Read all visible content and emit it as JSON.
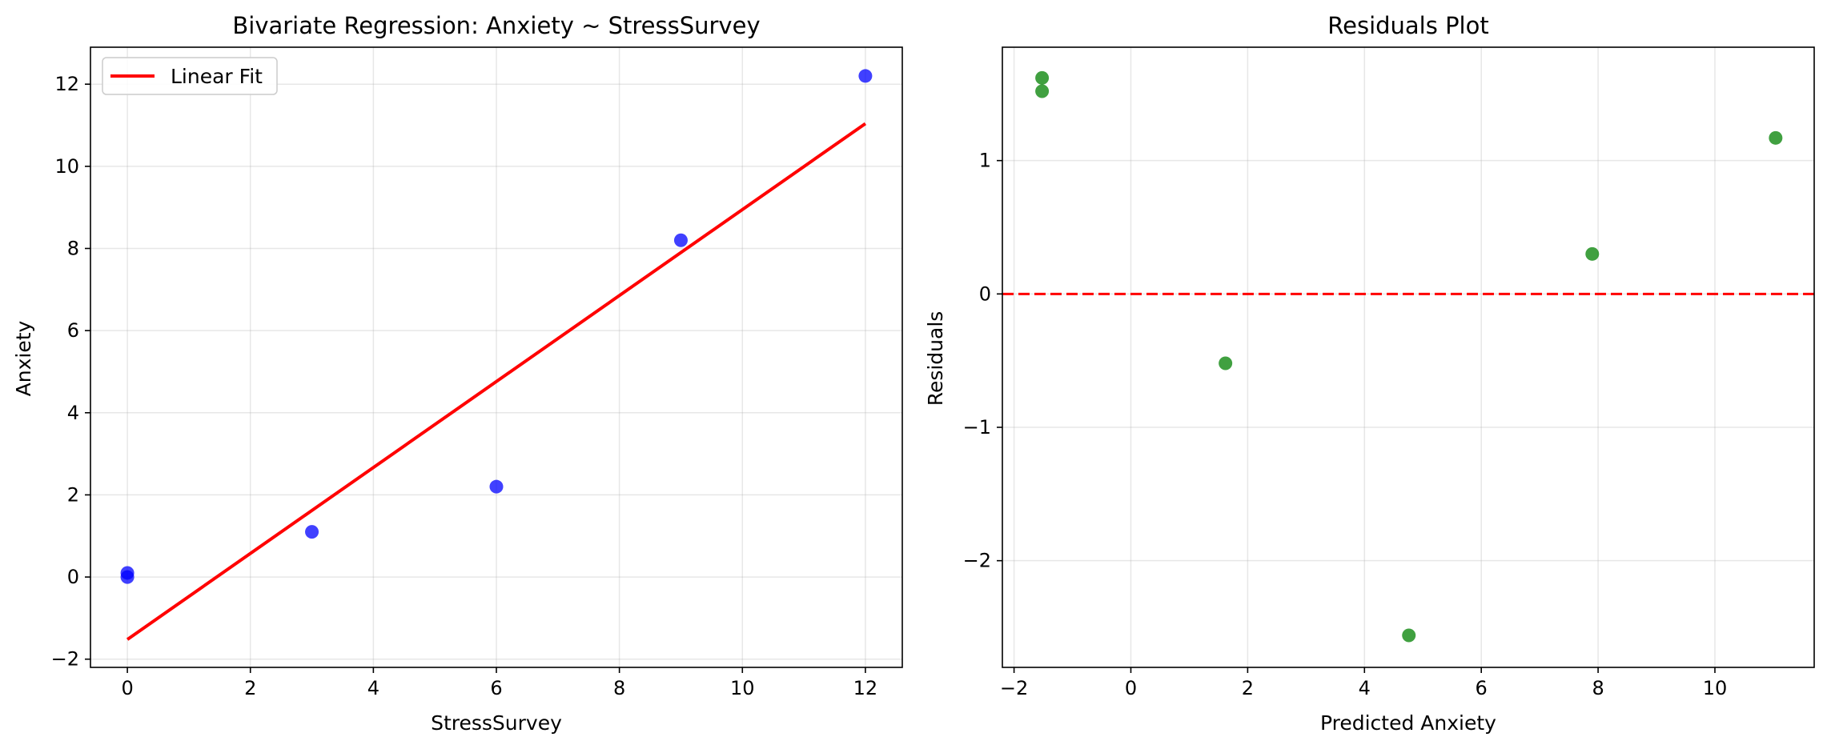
{
  "chart_data": [
    {
      "type": "scatter",
      "title": "Bivariate Regression: Anxiety ~ StressSurvey",
      "xlabel": "StressSurvey",
      "ylabel": "Anxiety",
      "xlim": [
        -0.6,
        12.6
      ],
      "ylim": [
        -2.2,
        12.9
      ],
      "xticks": [
        0,
        2,
        4,
        6,
        8,
        10,
        12
      ],
      "yticks": [
        -2,
        0,
        2,
        4,
        6,
        8,
        10,
        12
      ],
      "xtick_labels": [
        "0",
        "2",
        "4",
        "6",
        "8",
        "10",
        "12"
      ],
      "ytick_labels": [
        "−2",
        "0",
        "2",
        "4",
        "6",
        "8",
        "10",
        "12"
      ],
      "grid": true,
      "legend_position": "top-left",
      "legend_entries": [
        "Linear Fit"
      ],
      "points": {
        "color": "#0000ff",
        "x": [
          0,
          0,
          3,
          6,
          9,
          12
        ],
        "y": [
          0.1,
          0.0,
          1.1,
          2.2,
          8.2,
          12.2
        ]
      },
      "fit_line": {
        "color": "#ff0000",
        "x": [
          0,
          12
        ],
        "y": [
          -1.52,
          11.04
        ]
      }
    },
    {
      "type": "scatter",
      "title": "Residuals Plot",
      "xlabel": "Predicted Anxiety",
      "ylabel": "Residuals",
      "xlim": [
        -2.2,
        11.7
      ],
      "ylim": [
        -2.8,
        1.85
      ],
      "xticks": [
        -2,
        0,
        2,
        4,
        6,
        8,
        10
      ],
      "yticks": [
        -2,
        -1,
        0,
        1
      ],
      "xtick_labels": [
        "−2",
        "0",
        "2",
        "4",
        "6",
        "8",
        "10"
      ],
      "ytick_labels": [
        "−2",
        "−1",
        "0",
        "1"
      ],
      "grid": true,
      "points": {
        "color": "#008000",
        "x": [
          -1.52,
          -1.52,
          1.62,
          4.76,
          7.9,
          11.04
        ],
        "y": [
          1.62,
          1.52,
          -0.52,
          -2.56,
          0.3,
          1.17
        ]
      },
      "zero_line": {
        "color": "#ff0000",
        "y": 0
      }
    }
  ]
}
